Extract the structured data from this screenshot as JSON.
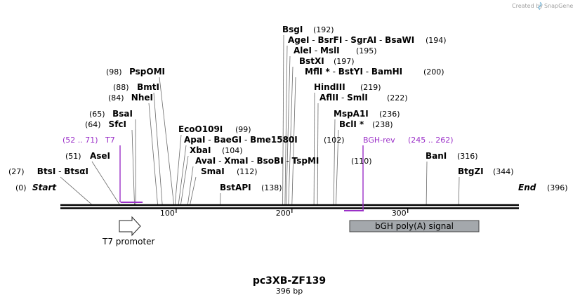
{
  "credit": {
    "prefix": "Created by",
    "brand": "SnapGene"
  },
  "title": {
    "name": "pc3XB-ZF139",
    "length": "396 bp"
  },
  "map": {
    "length_bp": 396,
    "ticks": [
      100,
      200,
      300
    ],
    "tick_labels": [
      "100",
      "200",
      "300"
    ]
  },
  "ends": {
    "start": {
      "label": "Start",
      "pos": "(0)"
    },
    "end": {
      "label": "End",
      "pos": "(396)"
    }
  },
  "sites": [
    {
      "labels": [
        "BsgI"
      ],
      "pos_text": "(192)",
      "bp": 192
    },
    {
      "labels": [
        "AgeI",
        "BsrFI",
        "SgrAI",
        "BsaWI"
      ],
      "pos_text": "(194)",
      "bp": 194
    },
    {
      "labels": [
        "AleI",
        "MslI"
      ],
      "pos_text": "(195)",
      "bp": 195
    },
    {
      "labels": [
        "BstXI"
      ],
      "pos_text": "(197)",
      "bp": 197
    },
    {
      "labels": [
        "MflI *",
        "BstYI",
        "BamHI"
      ],
      "pos_text": "(200)",
      "bp": 200
    },
    {
      "labels": [
        "HindIII"
      ],
      "pos_text": "(219)",
      "bp": 219
    },
    {
      "labels": [
        "AflII",
        "SmlI"
      ],
      "pos_text": "(222)",
      "bp": 222
    },
    {
      "labels": [
        "MspA1I"
      ],
      "pos_text": "(236)",
      "bp": 236
    },
    {
      "labels": [
        "BclI *"
      ],
      "pos_text": "(238)",
      "bp": 238
    },
    {
      "labels": [
        "PspOMI"
      ],
      "pos_text": "(98)",
      "bp": 98
    },
    {
      "labels": [
        "BmtI"
      ],
      "pos_text": "(88)",
      "bp": 88
    },
    {
      "labels": [
        "NheI"
      ],
      "pos_text": "(84)",
      "bp": 84
    },
    {
      "labels": [
        "BsaI"
      ],
      "pos_text": "(65)",
      "bp": 65
    },
    {
      "labels": [
        "SfcI"
      ],
      "pos_text": "(64)",
      "bp": 64
    },
    {
      "labels": [
        "AseI"
      ],
      "pos_text": "(51)",
      "bp": 51
    },
    {
      "labels": [
        "BtsI",
        "BtsαI"
      ],
      "pos_text": "(27)",
      "bp": 27
    },
    {
      "labels": [
        "EcoO109I"
      ],
      "pos_text": "(99)",
      "bp": 99
    },
    {
      "labels": [
        "ApaI",
        "BaeGI",
        "Bme1580I"
      ],
      "pos_text": "(102)",
      "bp": 102
    },
    {
      "labels": [
        "XbaI"
      ],
      "pos_text": "(104)",
      "bp": 104
    },
    {
      "labels": [
        "AvaI",
        "XmaI",
        "BsoBI",
        "TspMI"
      ],
      "pos_text": "(110)",
      "bp": 110
    },
    {
      "labels": [
        "SmaI"
      ],
      "pos_text": "(112)",
      "bp": 112
    },
    {
      "labels": [
        "BstAPI"
      ],
      "pos_text": "(138)",
      "bp": 138
    },
    {
      "labels": [
        "BanI"
      ],
      "pos_text": "(316)",
      "bp": 316
    },
    {
      "labels": [
        "BtgZI"
      ],
      "pos_text": "(344)",
      "bp": 344
    }
  ],
  "features": [
    {
      "name": "T7",
      "range_text": "(52 .. 71)",
      "start_bp": 52,
      "end_bp": 71,
      "color": "#9b30c8"
    },
    {
      "name": "BGH-rev",
      "range_text": "(245 .. 262)",
      "start_bp": 245,
      "end_bp": 262,
      "color": "#9b30c8"
    }
  ],
  "annotations": [
    {
      "name": "T7 promoter",
      "type": "arrow",
      "start_bp": 51,
      "end_bp": 69
    },
    {
      "name": "bGH poly(A) signal",
      "type": "box",
      "start_bp": 250,
      "end_bp": 362,
      "color": "#a4a8ac"
    }
  ]
}
